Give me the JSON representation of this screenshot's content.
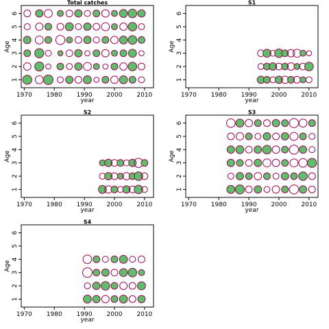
{
  "colors": {
    "positive_fill": "#5cc06a",
    "negative_stroke": "#a3004f",
    "positive_stroke": "#a3004f",
    "axis": "#000000",
    "panel_border": "#000000"
  },
  "chart_data": [
    {
      "type": "scatter",
      "title": "Total catches",
      "xlabel": "year",
      "ylabel": "Age",
      "xlim": [
        1969,
        2013
      ],
      "ylim": [
        0.4,
        6.6
      ],
      "xticks": [
        1970,
        1980,
        1990,
        2000,
        2010
      ],
      "yticks": [
        1,
        2,
        3,
        4,
        5,
        6
      ],
      "ages": [
        1,
        2,
        3,
        4,
        5,
        6
      ],
      "years": [
        1971,
        1975,
        1978,
        1982,
        1985,
        1988,
        1991,
        1994,
        1997,
        2000,
        2003,
        2006,
        2009
      ],
      "residuals": [
        [
          0.9,
          -0.7,
          1.0,
          -0.4,
          0.6,
          -0.5,
          0.7,
          -0.3,
          0.5,
          -0.6,
          0.7,
          0.5,
          -0.4
        ],
        [
          -0.6,
          0.9,
          -0.3,
          0.5,
          -0.4,
          0.6,
          -0.7,
          0.4,
          -0.3,
          0.5,
          -0.6,
          0.8,
          -0.5
        ],
        [
          0.5,
          0.9,
          -0.4,
          0.3,
          -0.5,
          0.6,
          -0.3,
          0.5,
          -0.6,
          0.4,
          0.5,
          0.7,
          -0.3
        ],
        [
          0.6,
          -0.7,
          0.5,
          -0.9,
          0.4,
          -0.5,
          0.6,
          -0.4,
          0.5,
          -0.6,
          0.7,
          0.8,
          0.5
        ],
        [
          -0.4,
          -0.6,
          0.5,
          -0.5,
          0.7,
          -0.4,
          0.6,
          -0.5,
          -0.7,
          0.4,
          -0.6,
          0.8,
          -0.4
        ],
        [
          -0.5,
          0.6,
          -0.7,
          0.4,
          -0.5,
          0.6,
          -0.4,
          0.5,
          -0.6,
          0.4,
          0.7,
          0.8,
          0.6
        ]
      ]
    },
    {
      "type": "scatter",
      "title": "S1",
      "xlabel": "year",
      "ylabel": "Age",
      "xlim": [
        1969,
        2013
      ],
      "ylim": [
        0.4,
        6.6
      ],
      "xticks": [
        1970,
        1980,
        1990,
        2000,
        2010
      ],
      "yticks": [
        1,
        2,
        3,
        4,
        5,
        6
      ],
      "ages": [
        1,
        2,
        3
      ],
      "years": [
        1994,
        1996,
        1998,
        2000,
        2002,
        2004,
        2006,
        2008,
        2010
      ],
      "residuals": [
        [
          0.6,
          0.5,
          -0.4,
          0.6,
          -0.6,
          0.5,
          -0.5,
          0.4,
          -0.4
        ],
        [
          -0.4,
          0.5,
          0.6,
          -0.5,
          0.5,
          -0.6,
          0.4,
          -0.5,
          0.8
        ],
        [
          -0.5,
          0.7,
          -0.4,
          0.8,
          0.5,
          -0.6,
          -0.7,
          0.4,
          -0.3
        ]
      ]
    },
    {
      "type": "scatter",
      "title": "S2",
      "xlabel": "year",
      "ylabel": "Age",
      "xlim": [
        1969,
        2013
      ],
      "ylim": [
        0.4,
        6.6
      ],
      "xticks": [
        1970,
        1980,
        1990,
        2000,
        2010
      ],
      "yticks": [
        1,
        2,
        3,
        4,
        5,
        6
      ],
      "ages": [
        1,
        2,
        3
      ],
      "years": [
        1996,
        1998,
        2000,
        2002,
        2004,
        2006,
        2008,
        2010
      ],
      "residuals": [
        [
          0.7,
          -0.6,
          0.5,
          -0.4,
          0.6,
          -0.5,
          0.8,
          -0.4
        ],
        [
          -0.4,
          0.6,
          -0.5,
          0.4,
          -0.6,
          0.5,
          0.8,
          -0.5
        ],
        [
          0.4,
          0.6,
          -0.5,
          0.5,
          -0.4,
          0.6,
          -0.9,
          0.5
        ]
      ]
    },
    {
      "type": "scatter",
      "title": "S3",
      "xlabel": "year",
      "ylabel": "Age",
      "xlim": [
        1969,
        2013
      ],
      "ylim": [
        0.4,
        6.6
      ],
      "xticks": [
        1970,
        1980,
        1990,
        2000,
        2010
      ],
      "yticks": [
        1,
        2,
        3,
        4,
        5,
        6
      ],
      "ages": [
        1,
        2,
        3,
        4,
        5,
        6
      ],
      "years": [
        1984,
        1987,
        1990,
        1993,
        1996,
        1999,
        2002,
        2005,
        2008,
        2011
      ],
      "residuals": [
        [
          0.7,
          0.9,
          -0.5,
          0.6,
          -0.4,
          -0.6,
          0.5,
          -0.9,
          0.6,
          -0.5
        ],
        [
          -0.4,
          0.6,
          0.5,
          -0.6,
          0.5,
          -0.4,
          0.6,
          0.5,
          0.8,
          -0.5
        ],
        [
          0.6,
          0.5,
          -0.5,
          0.6,
          -0.7,
          -0.6,
          0.5,
          -0.7,
          -0.8,
          0.9
        ],
        [
          0.6,
          0.7,
          -0.5,
          0.6,
          0.8,
          -0.6,
          0.5,
          -0.9,
          0.6,
          -0.4
        ],
        [
          -0.5,
          -0.6,
          0.5,
          -0.4,
          0.6,
          -0.5,
          0.6,
          -0.7,
          0.5,
          -0.4
        ],
        [
          -0.8,
          0.7,
          -0.6,
          0.5,
          -0.5,
          0.6,
          0.5,
          -0.9,
          -0.7,
          0.5
        ]
      ]
    },
    {
      "type": "scatter",
      "title": "S4",
      "xlabel": "year",
      "ylabel": "Age",
      "xlim": [
        1969,
        2013
      ],
      "ylim": [
        0.4,
        6.6
      ],
      "xticks": [
        1970,
        1980,
        1990,
        2000,
        2010
      ],
      "yticks": [
        1,
        2,
        3,
        4,
        5,
        6
      ],
      "ages": [
        1,
        2,
        3,
        4
      ],
      "years": [
        1991,
        1994,
        1997,
        2000,
        2003,
        2006,
        2009
      ],
      "residuals": [
        [
          0.7,
          0.6,
          -0.6,
          0.5,
          0.7,
          -0.5,
          0.6
        ],
        [
          -0.4,
          0.6,
          0.8,
          0.5,
          -0.6,
          -0.5,
          0.7
        ],
        [
          -1.0,
          0.5,
          0.6,
          -0.5,
          0.7,
          0.8,
          0.4
        ],
        [
          -0.8,
          0.5,
          -0.4,
          0.5,
          0.7,
          -0.4,
          -0.5
        ]
      ]
    }
  ]
}
